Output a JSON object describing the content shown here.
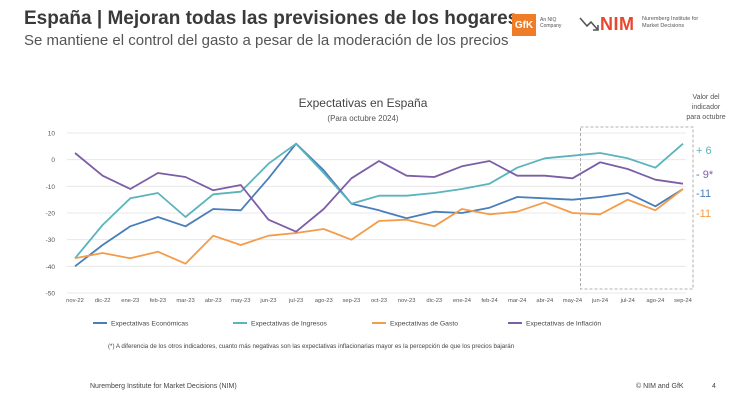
{
  "slide": {
    "title": "España | Mejoran todas las previsiones de los hogares",
    "subtitle": "Se mantiene el control del gasto a pesar de la moderación de los precios"
  },
  "logos": {
    "gfk": "GfK",
    "gfk_sub": "An NIQ Company",
    "nim": "NIM",
    "nim_sub": "Nuremberg Institute for Market Decisions"
  },
  "footer": {
    "left": "Nuremberg Institute for Market Decisions (NIM)",
    "right": "© NIM and GfK",
    "page": "4"
  },
  "chart_data": {
    "type": "line",
    "title": "Expectativas en España",
    "subtitle": "(Para octubre 2024)",
    "ylim": [
      -50,
      10
    ],
    "yticks": [
      10,
      0,
      -10,
      -20,
      -30,
      -40,
      -50
    ],
    "grid": "horizontal",
    "legend_position": "bottom",
    "x": [
      "nov-22",
      "dic-22",
      "ene-23",
      "feb-23",
      "mar-23",
      "abr-23",
      "may-23",
      "jun-23",
      "jul-23",
      "ago-23",
      "sep-23",
      "oct-23",
      "nov-23",
      "dic-23",
      "ene-24",
      "feb-24",
      "mar-24",
      "abr-24",
      "may-24",
      "jun-24",
      "jul-24",
      "ago-24",
      "sep-24"
    ],
    "series": [
      {
        "name": "Expectativas Económicas",
        "color": "#4a7ebb",
        "values": [
          -40,
          -32,
          -25,
          -21.5,
          -25,
          -18.5,
          -19,
          -7,
          6,
          -4,
          -16.5,
          -19,
          -22,
          -19.5,
          -20,
          -18,
          -14,
          -14.5,
          -15,
          -14,
          -12.5,
          -17.5,
          -11
        ]
      },
      {
        "name": "Expectativas de Ingresos",
        "color": "#5ab4bd",
        "values": [
          -37,
          -24.5,
          -14.5,
          -12.5,
          -21.5,
          -13,
          -12,
          -1.5,
          6,
          -5,
          -16.5,
          -13.5,
          -13.5,
          -12.5,
          -11,
          -9,
          -3,
          0.5,
          1.5,
          2.5,
          0.5,
          -3,
          6
        ]
      },
      {
        "name": "Expectativas de Gasto",
        "color": "#f39c4a",
        "values": [
          -37,
          -35,
          -37,
          -34.5,
          -39,
          -28.5,
          -32,
          -28.5,
          -27.5,
          -26,
          -30,
          -23,
          -22.5,
          -25,
          -18.5,
          -20.5,
          -19.5,
          -16,
          -20,
          -20.5,
          -15,
          -19,
          -11
        ]
      },
      {
        "name": "Expectativas de Inflación",
        "color": "#7b5ea7",
        "values": [
          2.5,
          -6,
          -11,
          -5,
          -6.5,
          -11.5,
          -9.5,
          -22.5,
          -27,
          -18.5,
          -7,
          -0.5,
          -6,
          -6.5,
          -2.5,
          -0.5,
          -6,
          -6,
          -7,
          -1,
          -3.5,
          -7.5,
          -9
        ]
      }
    ],
    "end_labels": [
      "+ 6",
      "- 9*",
      "-11",
      "-11"
    ],
    "end_label_colors": [
      "#5ab4bd",
      "#7b5ea7",
      "#4a7ebb",
      "#f39c4a"
    ],
    "side_note": [
      "Valor del",
      "indicador",
      "para octubre"
    ],
    "footnote": "(*) A diferencia de los otros indicadores, cuanto más negativas son las expectativas inflacionarias mayor es la percepción de que los precios bajarán",
    "highlight_range": [
      "may-24",
      "sep-24"
    ]
  }
}
